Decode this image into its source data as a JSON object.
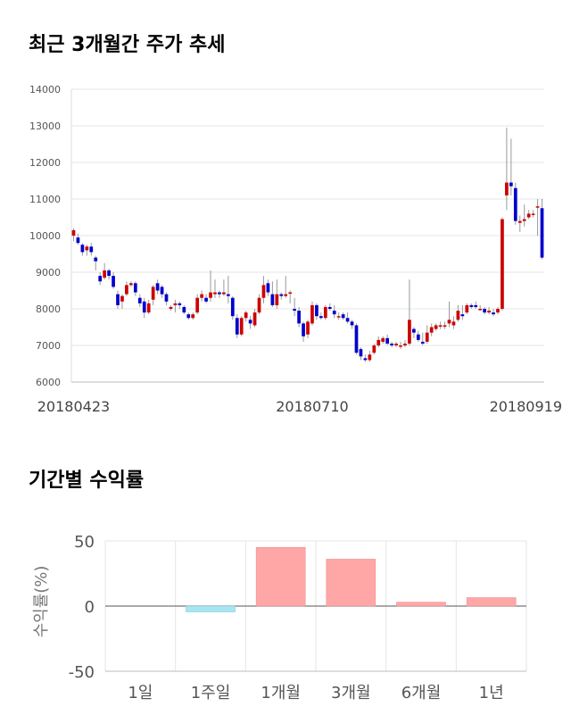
{
  "headings": {
    "price_trend": "최근 3개월간 주가 추세",
    "period_returns": "기간별 수익률"
  },
  "chart_data": [
    {
      "type": "candlestick",
      "title": "최근 3개월간 주가 추세",
      "ylim": [
        6000,
        14000
      ],
      "yticks": [
        6000,
        7000,
        8000,
        9000,
        10000,
        11000,
        12000,
        13000,
        14000
      ],
      "xtick_labels": [
        "20180423",
        "20180710",
        "20180919"
      ],
      "xtick_index": [
        0,
        54,
        107
      ],
      "grid": true,
      "colors": {
        "up": "#cc0000",
        "down": "#0000cc",
        "wick": "#999999"
      },
      "ohlc": [
        [
          10000,
          10150,
          9850,
          10200
        ],
        [
          9950,
          9800,
          9750,
          10050
        ],
        [
          9750,
          9550,
          9450,
          9800
        ],
        [
          9600,
          9700,
          9450,
          9750
        ],
        [
          9700,
          9550,
          9450,
          9800
        ],
        [
          9400,
          9300,
          9050,
          9450
        ],
        [
          8900,
          8750,
          8650,
          9000
        ],
        [
          8850,
          9050,
          8800,
          9250
        ],
        [
          9050,
          8900,
          8800,
          9100
        ],
        [
          8900,
          8600,
          8550,
          9000
        ],
        [
          8400,
          8100,
          8000,
          8500
        ],
        [
          8200,
          8350,
          8000,
          8400
        ],
        [
          8400,
          8650,
          8350,
          8750
        ],
        [
          8650,
          8700,
          8600,
          8750
        ],
        [
          8700,
          8450,
          8350,
          8750
        ],
        [
          8300,
          8150,
          8050,
          8400
        ],
        [
          8200,
          7900,
          7750,
          8300
        ],
        [
          7900,
          8150,
          7850,
          8250
        ],
        [
          8250,
          8600,
          8100,
          8650
        ],
        [
          8700,
          8500,
          8400,
          8800
        ],
        [
          8600,
          8400,
          8300,
          8650
        ],
        [
          8400,
          8200,
          8100,
          8450
        ],
        [
          8000,
          8050,
          7950,
          8100
        ],
        [
          8100,
          8150,
          7900,
          8250
        ],
        [
          8150,
          8100,
          8000,
          8200
        ],
        [
          8050,
          7900,
          7850,
          8100
        ],
        [
          7850,
          7750,
          7700,
          7900
        ],
        [
          7750,
          7850,
          7700,
          7900
        ],
        [
          7900,
          8300,
          7850,
          8400
        ],
        [
          8300,
          8400,
          8200,
          8500
        ],
        [
          8300,
          8200,
          8150,
          8400
        ],
        [
          8300,
          8450,
          8200,
          9050
        ],
        [
          8400,
          8450,
          8300,
          8800
        ],
        [
          8450,
          8400,
          8300,
          8500
        ],
        [
          8400,
          8450,
          8350,
          8800
        ],
        [
          8400,
          8350,
          8150,
          8900
        ],
        [
          8300,
          7800,
          7700,
          8350
        ],
        [
          7750,
          7300,
          7200,
          7850
        ],
        [
          7300,
          7750,
          7250,
          7800
        ],
        [
          7750,
          7900,
          7650,
          7950
        ],
        [
          7700,
          7600,
          7450,
          7800
        ],
        [
          7550,
          7900,
          7500,
          8000
        ],
        [
          7900,
          8300,
          7850,
          8400
        ],
        [
          8300,
          8650,
          8150,
          8900
        ],
        [
          8700,
          8450,
          8350,
          8800
        ],
        [
          8400,
          8100,
          8050,
          8750
        ],
        [
          8100,
          8400,
          8000,
          8800
        ],
        [
          8400,
          8350,
          8250,
          8450
        ],
        [
          8350,
          8400,
          8300,
          8900
        ],
        [
          8450,
          8450,
          8150,
          8500
        ],
        [
          8000,
          7950,
          7800,
          8300
        ],
        [
          7950,
          7600,
          7500,
          8050
        ],
        [
          7600,
          7250,
          7100,
          7650
        ],
        [
          7300,
          7650,
          7200,
          7700
        ],
        [
          7600,
          8100,
          7550,
          8200
        ],
        [
          8100,
          7800,
          7700,
          8150
        ],
        [
          7800,
          7750,
          7700,
          7900
        ],
        [
          7750,
          8050,
          7700,
          8100
        ],
        [
          8050,
          8000,
          7950,
          8150
        ],
        [
          7950,
          7850,
          7750,
          8100
        ],
        [
          7800,
          7800,
          7700,
          7900
        ],
        [
          7850,
          7750,
          7700,
          7900
        ],
        [
          7750,
          7650,
          7600,
          7900
        ],
        [
          7650,
          7550,
          7450,
          7700
        ],
        [
          7550,
          6800,
          6750,
          7600
        ],
        [
          6900,
          6700,
          6600,
          6950
        ],
        [
          6650,
          6600,
          6550,
          6750
        ],
        [
          6600,
          6750,
          6550,
          6850
        ],
        [
          6800,
          7000,
          6750,
          7050
        ],
        [
          7000,
          7150,
          6950,
          7250
        ],
        [
          7100,
          7200,
          7050,
          7250
        ],
        [
          7200,
          7050,
          7000,
          7300
        ],
        [
          7050,
          7000,
          6950,
          7100
        ],
        [
          7000,
          7050,
          6950,
          7100
        ],
        [
          7000,
          7000,
          6900,
          7100
        ],
        [
          7000,
          7050,
          6950,
          7150
        ],
        [
          7050,
          7700,
          7000,
          8800
        ],
        [
          7450,
          7350,
          7200,
          7500
        ],
        [
          7300,
          7150,
          7100,
          7400
        ],
        [
          7100,
          7050,
          7000,
          7350
        ],
        [
          7100,
          7350,
          7050,
          7550
        ],
        [
          7350,
          7500,
          7250,
          7600
        ],
        [
          7450,
          7550,
          7400,
          7600
        ],
        [
          7550,
          7550,
          7450,
          7650
        ],
        [
          7550,
          7550,
          7450,
          7650
        ],
        [
          7600,
          7700,
          7500,
          8200
        ],
        [
          7550,
          7650,
          7450,
          7800
        ],
        [
          7700,
          7950,
          7650,
          8100
        ],
        [
          7850,
          7800,
          7700,
          8100
        ],
        [
          7900,
          8100,
          7850,
          8150
        ],
        [
          8100,
          8050,
          8000,
          8150
        ],
        [
          8100,
          8050,
          8000,
          8200
        ],
        [
          8000,
          8000,
          7950,
          8100
        ],
        [
          8000,
          7900,
          7850,
          8050
        ],
        [
          7900,
          7950,
          7850,
          8050
        ],
        [
          7900,
          7850,
          7800,
          8000
        ],
        [
          7900,
          8000,
          7850,
          8050
        ],
        [
          8000,
          10450,
          7950,
          10500
        ],
        [
          11100,
          11450,
          10700,
          12950
        ],
        [
          11450,
          11350,
          11100,
          12650
        ],
        [
          11300,
          10400,
          10300,
          11450
        ],
        [
          10350,
          10400,
          10100,
          10550
        ],
        [
          10400,
          10450,
          10250,
          10850
        ],
        [
          10500,
          10600,
          10450,
          10700
        ],
        [
          10600,
          10600,
          10500,
          10700
        ],
        [
          10800,
          10800,
          10000,
          11000
        ],
        [
          10750,
          9400,
          9350,
          11000
        ]
      ]
    },
    {
      "type": "bar",
      "categories": [
        "1일",
        "1주일",
        "1개월",
        "3개월",
        "6개월",
        "1년"
      ],
      "values": [
        0,
        -4.5,
        45,
        36,
        3,
        6.5
      ],
      "ylabel": "수익률(%)",
      "ylim": [
        -50,
        50
      ],
      "yticks": [
        50,
        0,
        -50
      ],
      "colors": {
        "positive": "#ffa6a6",
        "negative": "#a6e6f0"
      }
    }
  ]
}
